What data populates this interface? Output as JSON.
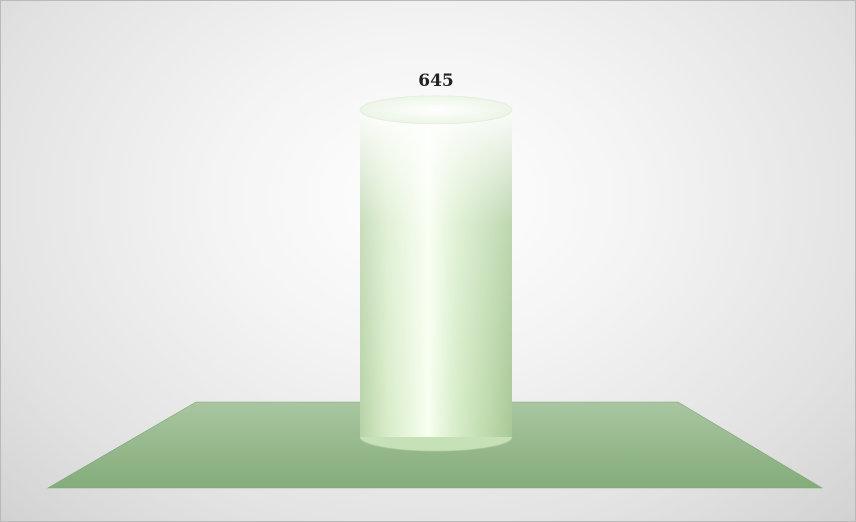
{
  "chart_data": {
    "type": "bar",
    "style": "3d-cylinder",
    "categories": [
      ""
    ],
    "values": [
      645
    ],
    "data_labels": [
      "645"
    ],
    "ylim": [
      0,
      700
    ],
    "grid": false,
    "legend": "none",
    "colors": {
      "bar_light": "#ffffff",
      "bar_mid": "#cfe9c0",
      "bar_dark": "#9fc48e",
      "floor": "#8fb486",
      "floor_edge": "#7ea575"
    }
  }
}
